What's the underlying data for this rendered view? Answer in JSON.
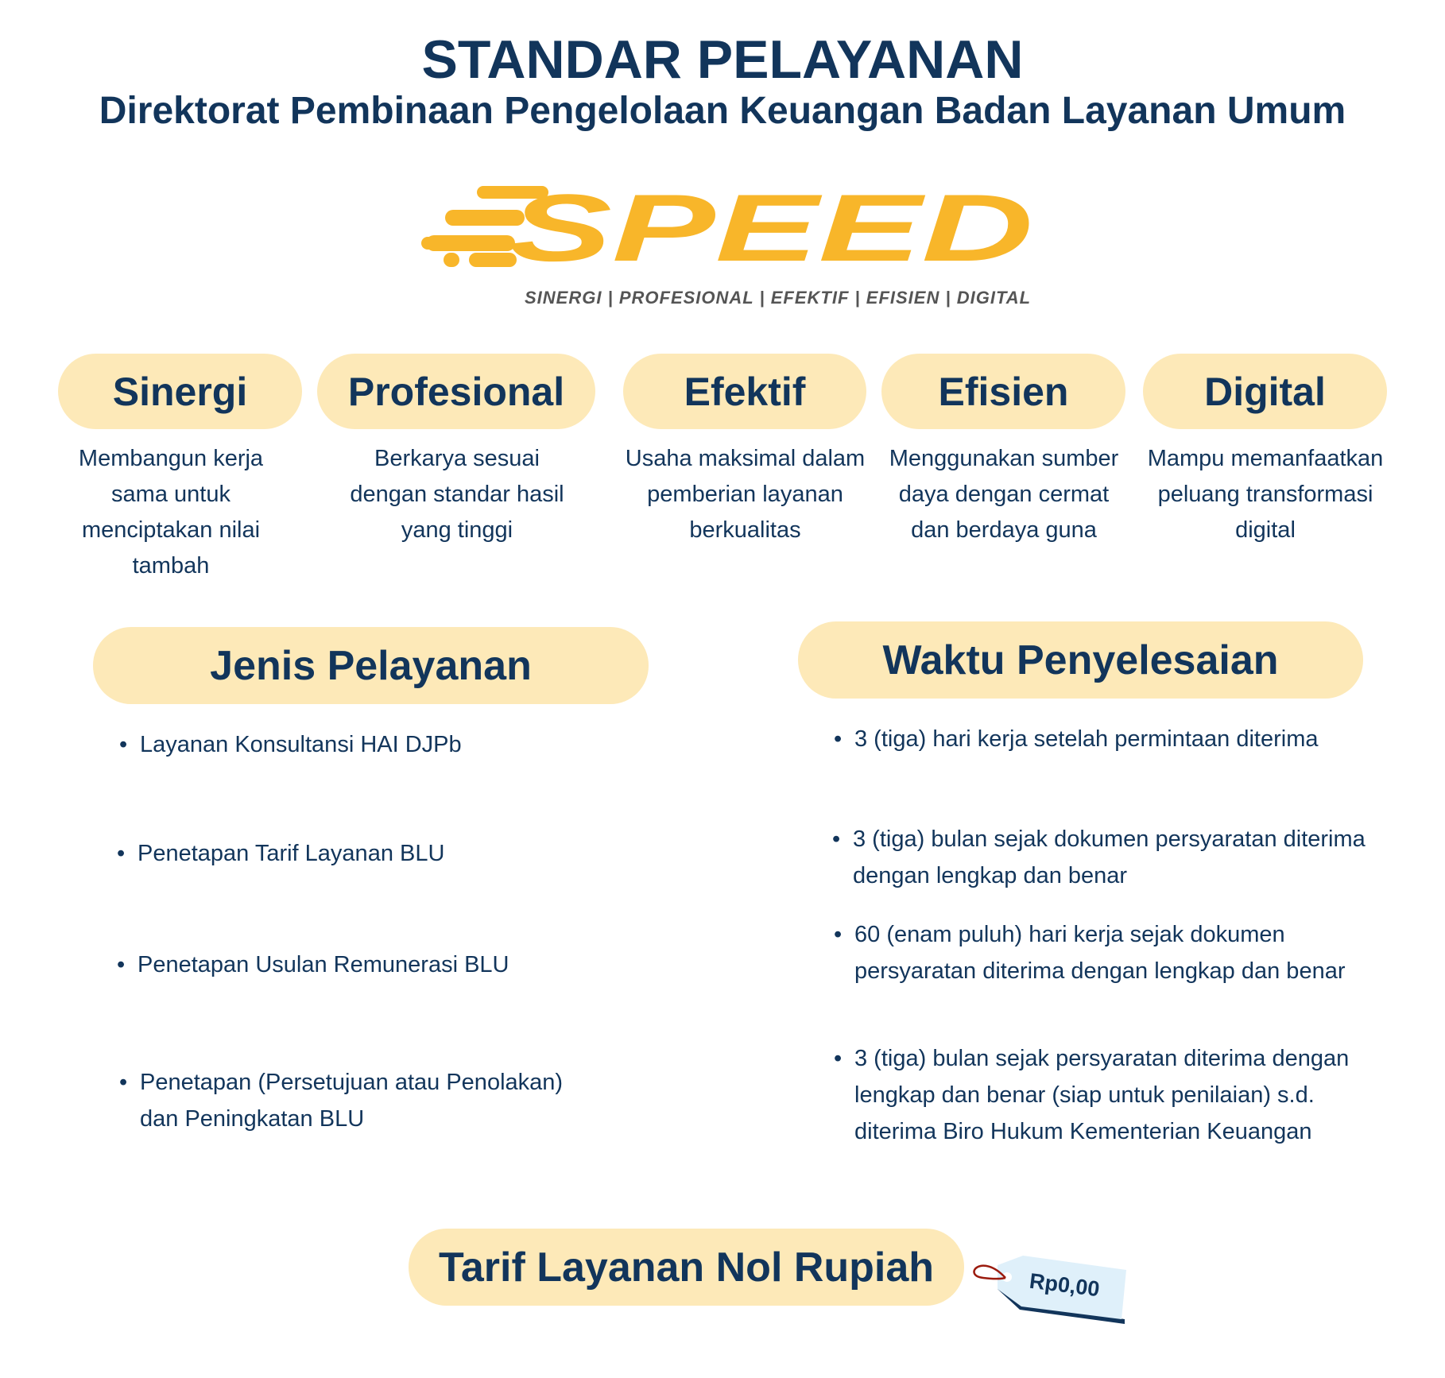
{
  "header": {
    "title": "STANDAR PELAYANAN",
    "subtitle": "Direktorat Pembinaan Pengelolaan Keuangan Badan Layanan Umum"
  },
  "logo": {
    "text": "SPEED",
    "tagline": "SINERGI | PROFESIONAL | EFEKTIF | EFISIEN | DIGITAL",
    "color": "#f8b62a"
  },
  "values": [
    {
      "label": "Sinergi",
      "desc": "Membangun kerja sama untuk menciptakan nilai tambah"
    },
    {
      "label": "Profesional",
      "desc": "Berkarya sesuai dengan standar hasil yang tinggi"
    },
    {
      "label": "Efektif",
      "desc": "Usaha maksimal dalam pemberian layanan berkualitas"
    },
    {
      "label": "Efisien",
      "desc": "Menggunakan sumber daya dengan cermat dan berdaya guna"
    },
    {
      "label": "Digital",
      "desc": "Mampu memanfaatkan peluang transformasi digital"
    }
  ],
  "jenis": {
    "title": "Jenis Pelayanan",
    "items": [
      "Layanan Konsultansi HAI DJPb",
      "Penetapan Tarif Layanan BLU",
      "Penetapan Usulan Remunerasi BLU",
      "Penetapan (Persetujuan atau Penolakan) dan Peningkatan BLU"
    ]
  },
  "waktu": {
    "title": "Waktu Penyelesaian",
    "items": [
      "3 (tiga) hari kerja setelah permintaan diterima",
      "3 (tiga) bulan sejak dokumen persyaratan diterima dengan lengkap dan benar",
      "60 (enam puluh) hari kerja sejak dokumen persyaratan diterima dengan lengkap dan benar",
      "3 (tiga) bulan sejak persyaratan diterima dengan lengkap dan benar (siap untuk penilaian) s.d. diterima Biro Hukum Kementerian Keuangan"
    ]
  },
  "tarif": {
    "title": "Tarif Layanan Nol Rupiah",
    "price": "Rp0,00"
  },
  "colors": {
    "text": "#12355b",
    "pill": "#fde9b8",
    "tag": "#dff0fa"
  }
}
